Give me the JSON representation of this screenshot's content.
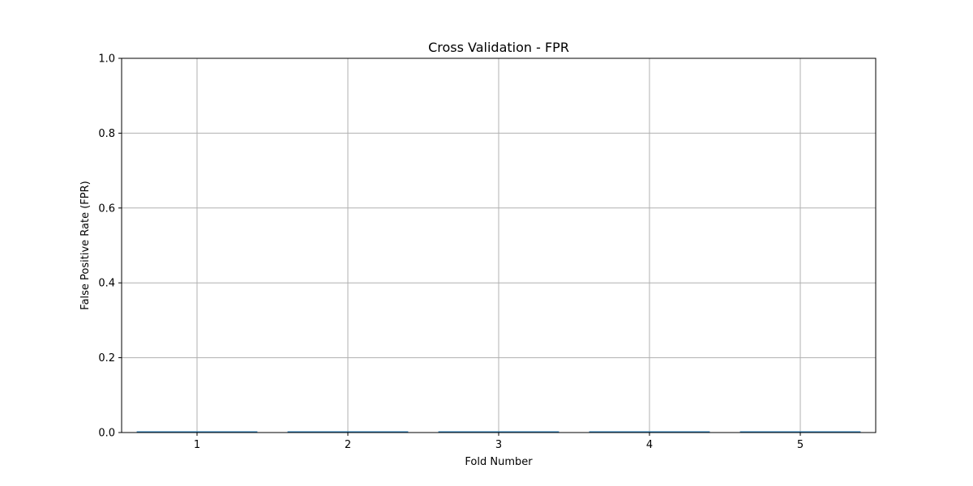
{
  "chart_data": {
    "type": "bar",
    "title": "Cross Validation - FPR",
    "xlabel": "Fold Number",
    "ylabel": "False Positive Rate (FPR)",
    "categories": [
      "1",
      "2",
      "3",
      "4",
      "5"
    ],
    "values": [
      0.003,
      0.003,
      0.003,
      0.003,
      0.003
    ],
    "ylim": [
      0,
      1.0
    ],
    "yticks": [
      "0.0",
      "0.2",
      "0.4",
      "0.6",
      "0.8",
      "1.0"
    ],
    "grid": true,
    "bar_color": "#1f77b4",
    "grid_color": "#b0b0b0"
  }
}
